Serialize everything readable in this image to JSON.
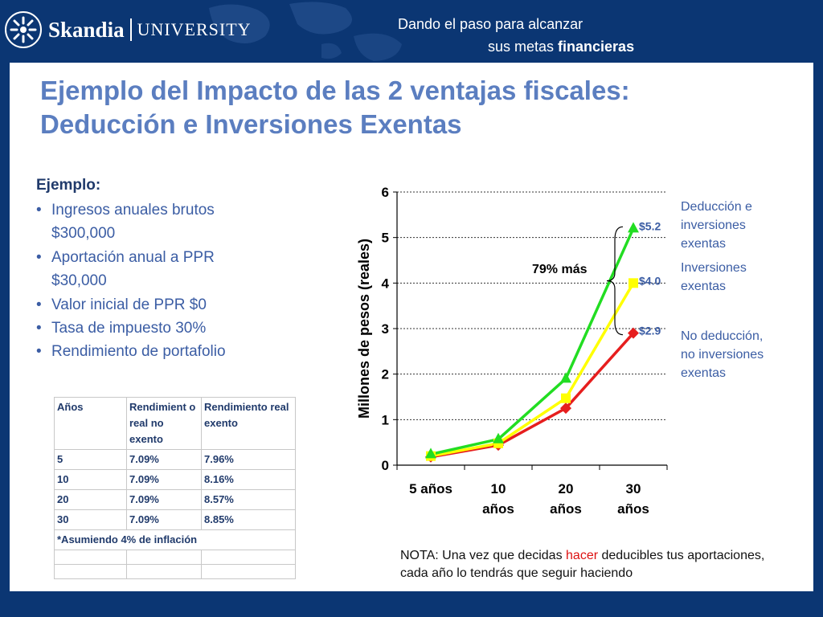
{
  "header": {
    "brand": "Skandia",
    "brand_sub": "UNIVERSITY",
    "tagline_line1": "Dando el paso para alcanzar",
    "tagline_line2_pre": "sus metas ",
    "tagline_line2_bold": "financieras"
  },
  "title": {
    "line1": "Ejemplo del Impacto de las 2 ventajas fiscales:",
    "line2": "Deducción e Inversiones Exentas"
  },
  "example": {
    "heading": "Ejemplo:",
    "items": [
      "Ingresos anuales brutos",
      "$300,000",
      "Aportación anual a PPR",
      "$30,000",
      "Valor inicial de PPR $0",
      "Tasa de impuesto 30%",
      "Rendimiento de portafolio"
    ]
  },
  "table": {
    "headers": [
      "Años",
      "Rendimient o real no exento",
      "Rendimiento real exento"
    ],
    "rows": [
      [
        "5",
        "7.09%",
        "7.96%"
      ],
      [
        "10",
        "7.09%",
        "8.16%"
      ],
      [
        "20",
        "7.09%",
        "8.57%"
      ],
      [
        "30",
        "7.09%",
        "8.85%"
      ]
    ],
    "footnote": "*Asumiendo 4% de inflación"
  },
  "chart_data": {
    "type": "line",
    "title": "",
    "xlabel": "",
    "ylabel": "Millones de pesos (reales)",
    "categories": [
      "5 años",
      "10 años",
      "20 años",
      "30 años"
    ],
    "ylim": [
      0,
      6
    ],
    "yticks": [
      "0",
      "1",
      "2",
      "3",
      "4",
      "5",
      "6"
    ],
    "grid": true,
    "series": [
      {
        "name": "Deducción e inversiones exentas",
        "color": "#22dd22",
        "marker": "triangle",
        "values": [
          0.24,
          0.57,
          1.9,
          5.2
        ]
      },
      {
        "name": "Inversiones exentas",
        "color": "#ffff00",
        "marker": "square",
        "values": [
          0.2,
          0.48,
          1.47,
          4.0
        ]
      },
      {
        "name": "No deducción, no inversiones exentas",
        "color": "#e61e1e",
        "marker": "diamond",
        "values": [
          0.18,
          0.44,
          1.25,
          2.9
        ]
      }
    ],
    "end_labels": [
      "$5.2",
      "$4.0",
      "$2.9"
    ],
    "annotation": "79% más"
  },
  "legend": [
    {
      "line1": "Deducción e",
      "line2": "inversiones",
      "line3": "exentas",
      "color": "#3b5da4"
    },
    {
      "line1": "Inversiones",
      "line2": "exentas",
      "color": "#3b5da4"
    },
    {
      "line1": "No deducción,",
      "line2": "no inversiones",
      "line3": "exentas",
      "color": "#3b5da4"
    }
  ],
  "note": {
    "pre": "NOTA: Una vez que decidas ",
    "highlight": "hacer",
    "post": " deducibles tus aportaciones, cada año lo tendrás que seguir haciendo"
  }
}
